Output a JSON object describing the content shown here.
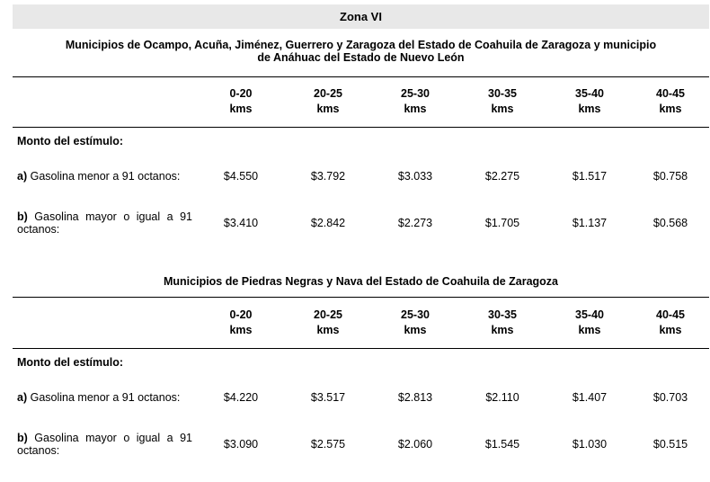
{
  "zone_title": "Zona VI",
  "headers": [
    {
      "range": "0-20",
      "unit": "kms"
    },
    {
      "range": "20-25",
      "unit": "kms"
    },
    {
      "range": "25-30",
      "unit": "kms"
    },
    {
      "range": "30-35",
      "unit": "kms"
    },
    {
      "range": "35-40",
      "unit": "kms"
    },
    {
      "range": "40-45",
      "unit": "kms"
    }
  ],
  "sections": [
    {
      "title_line1": "Municipios de Ocampo, Acuña, Jiménez, Guerrero y Zaragoza del Estado de Coahuila de Zaragoza y municipio",
      "title_line2": "de Anáhuac del Estado de Nuevo León",
      "monto_label": "Monto del estímulo:",
      "rows": [
        {
          "letter": "a)",
          "label": "Gasolina menor a 91 octanos:",
          "values": [
            "$4.550",
            "$3.792",
            "$3.033",
            "$2.275",
            "$1.517",
            "$0.758"
          ]
        },
        {
          "letter": "b)",
          "label_line1": "Gasolina mayor o igual a 91",
          "label_line2": "octanos:",
          "values": [
            "$3.410",
            "$2.842",
            "$2.273",
            "$1.705",
            "$1.137",
            "$0.568"
          ]
        }
      ]
    },
    {
      "title_line1": "Municipios de Piedras Negras y Nava del Estado de Coahuila de Zaragoza",
      "monto_label": "Monto del estímulo:",
      "rows": [
        {
          "letter": "a)",
          "label": "Gasolina menor a 91 octanos:",
          "values": [
            "$4.220",
            "$3.517",
            "$2.813",
            "$2.110",
            "$1.407",
            "$0.703"
          ]
        },
        {
          "letter": "b)",
          "label_line1": "Gasolina mayor o igual a 91",
          "label_line2": "octanos:",
          "values": [
            "$3.090",
            "$2.575",
            "$2.060",
            "$1.545",
            "$1.030",
            "$0.515"
          ]
        }
      ]
    }
  ]
}
